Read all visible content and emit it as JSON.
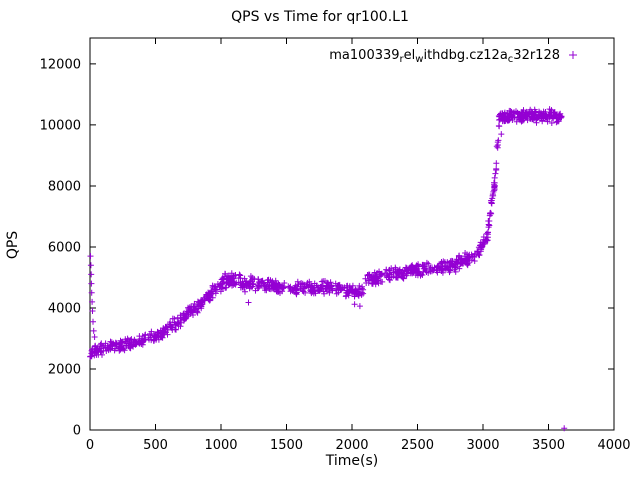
{
  "colors": {
    "series": "#9400D3",
    "axis": "#000000",
    "background": "#ffffff"
  },
  "chart_data": {
    "type": "scatter",
    "title": "QPS vs Time for qr100.L1",
    "xlabel": "Time(s)",
    "ylabel": "QPS",
    "xlim": [
      0,
      4000
    ],
    "ylim": [
      0,
      12850
    ],
    "xticks": [
      0,
      500,
      1000,
      1500,
      2000,
      2500,
      3000,
      3500,
      4000
    ],
    "yticks": [
      0,
      2000,
      4000,
      6000,
      8000,
      10000,
      12000
    ],
    "grid": false,
    "marker": "plus",
    "legend": {
      "position": "top-right",
      "label_plain": "ma100339_rel_withdbg.cz12a_c32r128",
      "label_parts": [
        {
          "t": "ma100339"
        },
        {
          "t": "r",
          "sub": true
        },
        {
          "t": "el"
        },
        {
          "t": "w",
          "sub": true
        },
        {
          "t": "ithdbg.cz12a"
        },
        {
          "t": "c",
          "sub": true
        },
        {
          "t": "32r128"
        }
      ]
    },
    "seed": 1337,
    "bands_format": "x0,x1,yStart,yEnd,spread,count",
    "scatter_bands": [
      [
        0,
        100,
        2550,
        2700,
        500,
        40
      ],
      [
        100,
        250,
        2700,
        2800,
        450,
        45
      ],
      [
        250,
        400,
        2800,
        2950,
        450,
        45
      ],
      [
        400,
        550,
        2950,
        3150,
        450,
        45
      ],
      [
        550,
        700,
        3200,
        3600,
        500,
        45
      ],
      [
        700,
        800,
        3650,
        3950,
        500,
        35
      ],
      [
        800,
        900,
        4000,
        4350,
        500,
        35
      ],
      [
        900,
        1000,
        4400,
        4750,
        500,
        40
      ],
      [
        1000,
        1150,
        4850,
        4950,
        550,
        55
      ],
      [
        1150,
        1350,
        4800,
        4750,
        550,
        60
      ],
      [
        1350,
        1550,
        4750,
        4700,
        500,
        60
      ],
      [
        1550,
        1750,
        4650,
        4650,
        500,
        60
      ],
      [
        1750,
        1950,
        4700,
        4650,
        500,
        60
      ],
      [
        1950,
        2100,
        4550,
        4550,
        500,
        50
      ],
      [
        2100,
        2250,
        4900,
        5050,
        500,
        50
      ],
      [
        2250,
        2450,
        5100,
        5200,
        500,
        60
      ],
      [
        2450,
        2650,
        5250,
        5300,
        500,
        60
      ],
      [
        2650,
        2800,
        5350,
        5400,
        500,
        50
      ],
      [
        2800,
        2950,
        5500,
        5650,
        500,
        50
      ],
      [
        2950,
        3040,
        5800,
        6400,
        500,
        35
      ],
      [
        3040,
        3100,
        6700,
        8400,
        600,
        32
      ],
      [
        3100,
        3125,
        8400,
        10200,
        500,
        10
      ],
      [
        3115,
        3600,
        10280,
        10300,
        480,
        210
      ]
    ],
    "outlier_points": [
      [
        4,
        5700
      ],
      [
        7,
        5400
      ],
      [
        9,
        5100
      ],
      [
        11,
        4800
      ],
      [
        13,
        4500
      ],
      [
        16,
        4200
      ],
      [
        19,
        3900
      ],
      [
        23,
        3550
      ],
      [
        28,
        3250
      ],
      [
        35,
        3050
      ],
      [
        1210,
        4180
      ],
      [
        2020,
        4120
      ],
      [
        2060,
        4060
      ],
      [
        3105,
        9300
      ],
      [
        3140,
        9700
      ],
      [
        3620,
        60
      ]
    ]
  }
}
